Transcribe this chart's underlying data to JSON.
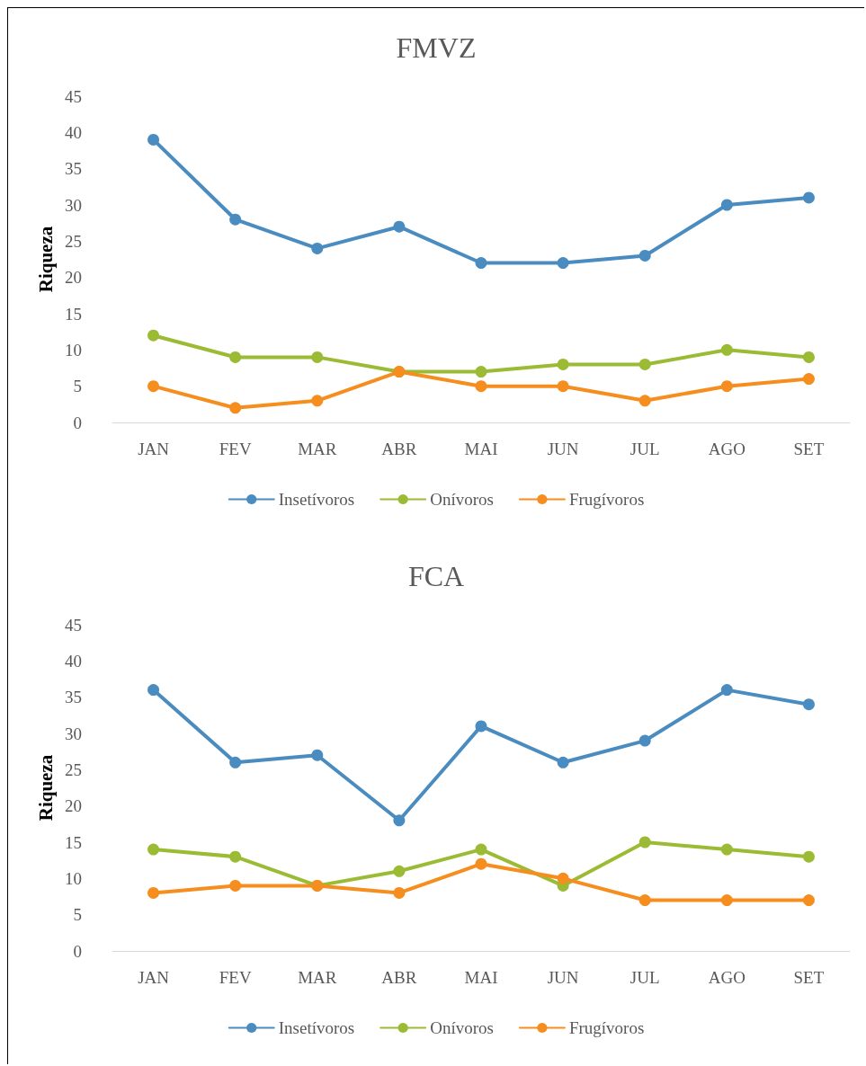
{
  "chart_data": [
    {
      "type": "line",
      "title": "FMVZ",
      "ylabel": "Riqueza",
      "categories": [
        "JAN",
        "FEV",
        "MAR",
        "ABR",
        "MAI",
        "JUN",
        "JUL",
        "AGO",
        "SET"
      ],
      "series": [
        {
          "name": "Insetívoros",
          "color": "#4a8cbf",
          "values": [
            39,
            28,
            24,
            27,
            22,
            22,
            23,
            30,
            31
          ]
        },
        {
          "name": "Onívoros",
          "color": "#9bbb35",
          "values": [
            12,
            9,
            9,
            7,
            7,
            8,
            8,
            10,
            9
          ]
        },
        {
          "name": "Frugívoros",
          "color": "#f58d1f",
          "values": [
            5,
            2,
            3,
            7,
            5,
            5,
            3,
            5,
            6
          ]
        }
      ],
      "ylim": [
        0,
        45
      ],
      "yticks": [
        0,
        5,
        10,
        15,
        20,
        25,
        30,
        35,
        40,
        45
      ],
      "grid": false,
      "legend": "bottom",
      "marker": "circle",
      "line_style": "solid"
    },
    {
      "type": "line",
      "title": "FCA",
      "ylabel": "Riqueza",
      "categories": [
        "JAN",
        "FEV",
        "MAR",
        "ABR",
        "MAI",
        "JUN",
        "JUL",
        "AGO",
        "SET"
      ],
      "series": [
        {
          "name": "Insetívoros",
          "color": "#4a8cbf",
          "values": [
            36,
            26,
            27,
            18,
            31,
            26,
            29,
            36,
            34
          ]
        },
        {
          "name": "Onívoros",
          "color": "#9bbb35",
          "values": [
            14,
            13,
            9,
            11,
            14,
            9,
            15,
            14,
            13
          ]
        },
        {
          "name": "Frugívoros",
          "color": "#f58d1f",
          "values": [
            8,
            9,
            9,
            8,
            12,
            10,
            7,
            7,
            7
          ]
        }
      ],
      "ylim": [
        0,
        45
      ],
      "yticks": [
        0,
        5,
        10,
        15,
        20,
        25,
        30,
        35,
        40,
        45
      ],
      "grid": false,
      "legend": "bottom",
      "marker": "circle",
      "line_style": "solid"
    }
  ]
}
